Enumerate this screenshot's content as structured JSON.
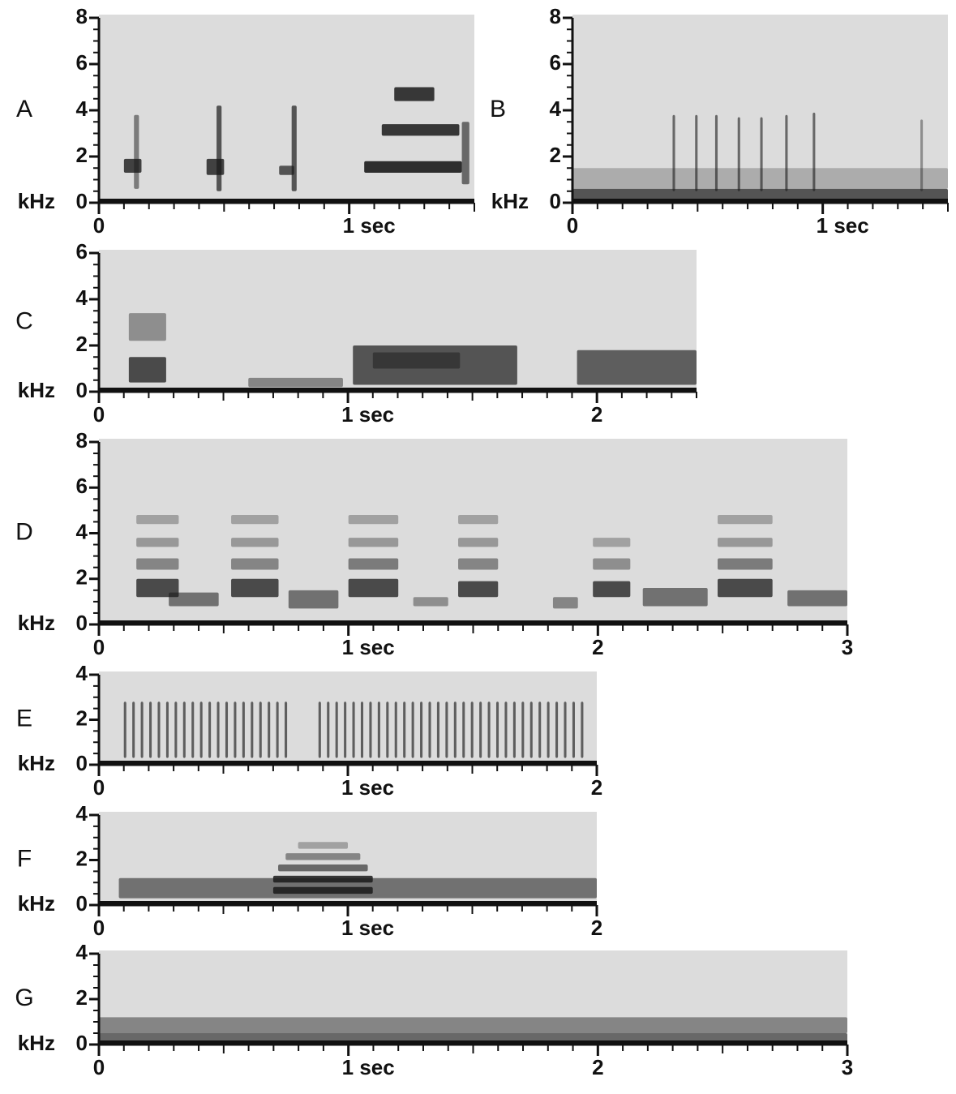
{
  "chart_data": [
    {
      "type": "spectrogram",
      "panel": "A",
      "y_unit": "kHz",
      "xlim": [
        0,
        1.5
      ],
      "ylim": [
        0,
        8
      ],
      "yticks": [
        0,
        2,
        4,
        6,
        8
      ],
      "xticks": [
        0,
        {
          "value": 1,
          "label": "1 sec"
        }
      ]
    },
    {
      "type": "spectrogram",
      "panel": "B",
      "y_unit": "kHz",
      "xlim": [
        0,
        1.5
      ],
      "ylim": [
        0,
        8
      ],
      "yticks": [
        0,
        2,
        4,
        6,
        8
      ],
      "xticks": [
        0,
        {
          "value": 1,
          "label": "1 sec"
        }
      ]
    },
    {
      "type": "spectrogram",
      "panel": "C",
      "y_unit": "kHz",
      "xlim": [
        0,
        2.4
      ],
      "ylim": [
        0,
        6
      ],
      "yticks": [
        0,
        2,
        4,
        6
      ],
      "xticks": [
        0,
        {
          "value": 1,
          "label": "1 sec"
        },
        2
      ]
    },
    {
      "type": "spectrogram",
      "panel": "D",
      "y_unit": "kHz",
      "xlim": [
        0,
        3
      ],
      "ylim": [
        0,
        8
      ],
      "yticks": [
        0,
        2,
        4,
        6,
        8
      ],
      "xticks": [
        0,
        {
          "value": 1,
          "label": "1 sec"
        },
        2,
        3
      ]
    },
    {
      "type": "spectrogram",
      "panel": "E",
      "y_unit": "kHz",
      "xlim": [
        0,
        2
      ],
      "ylim": [
        0,
        4
      ],
      "yticks": [
        0,
        2,
        4
      ],
      "xticks": [
        0,
        {
          "value": 1,
          "label": "1 sec"
        },
        2
      ]
    },
    {
      "type": "spectrogram",
      "panel": "F",
      "y_unit": "kHz",
      "xlim": [
        0,
        2
      ],
      "ylim": [
        0,
        4
      ],
      "yticks": [
        0,
        2,
        4
      ],
      "xticks": [
        0,
        {
          "value": 1,
          "label": "1 sec"
        },
        2
      ]
    },
    {
      "type": "spectrogram",
      "panel": "G",
      "y_unit": "kHz",
      "xlim": [
        0,
        3
      ],
      "ylim": [
        0,
        4
      ],
      "yticks": [
        0,
        2,
        4
      ],
      "xticks": [
        0,
        {
          "value": 1,
          "label": "1 sec"
        },
        2,
        3
      ]
    }
  ]
}
